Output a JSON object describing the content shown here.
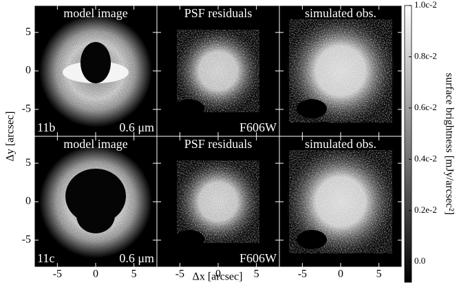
{
  "chart_data": {
    "type": "image-grid",
    "xlabel": "Δx [arcsec]",
    "ylabel": "Δy [arcsec]",
    "xlim": [
      -8,
      8
    ],
    "ylim": [
      -8.5,
      8.5
    ],
    "xticks": [
      -5,
      0,
      5
    ],
    "yticks": [
      -5,
      0,
      5
    ],
    "panels": [
      {
        "title": "model image",
        "label": "11b",
        "note": "0.6 μm"
      },
      {
        "title": "PSF residuals",
        "note": "F606W"
      },
      {
        "title": "simulated obs."
      },
      {
        "title": "model image",
        "label": "11c",
        "note": "0.6 μm"
      },
      {
        "title": "PSF residuals",
        "note": "F606W"
      },
      {
        "title": "simulated obs."
      }
    ],
    "colorbar": {
      "label": "surface brightness [mJy/arcsec²]",
      "ylim": [
        -0.0008,
        0.01
      ],
      "yticks": [
        {
          "value": 0.01,
          "label": "1.0c-2"
        },
        {
          "value": 0.008,
          "label": "0.8c-2"
        },
        {
          "value": 0.006,
          "label": "0.6c-2"
        },
        {
          "value": 0.004,
          "label": "0.4c-2"
        },
        {
          "value": 0.002,
          "label": "0.2e-2"
        },
        {
          "value": 0,
          "label": "0.0"
        }
      ]
    }
  }
}
